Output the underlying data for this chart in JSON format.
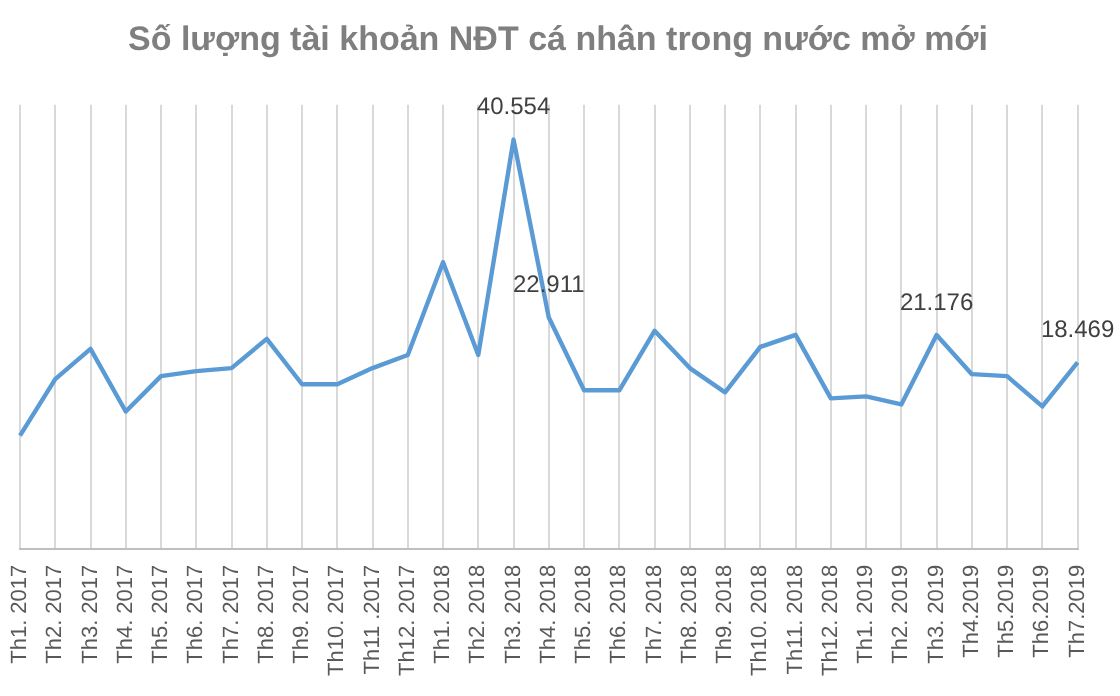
{
  "chart_data": {
    "type": "line",
    "title": "Số lượng tài khoản NĐT cá nhân trong nước mở mới",
    "categories": [
      "Th1. 2017",
      "Th2. 2017",
      "Th3. 2017",
      "Th4. 2017",
      "Th5. 2017",
      "Th6. 2017",
      "Th7. 2017",
      "Th8. 2017",
      "Th9. 2017",
      "Th10. 2017",
      "Th11 .2017",
      "Th12. 2017",
      "Th1. 2018",
      "Th2. 2018",
      "Th3. 2018",
      "Th4. 2018",
      "Th5. 2018",
      "Th6. 2018",
      "Th7. 2018",
      "Th8. 2018",
      "Th9. 2018",
      "Th10. 2018",
      "Th11. 2018",
      "Th12. 2018",
      "Th1. 2019",
      "Th2. 2019",
      "Th3. 2019",
      "Th4.2019",
      "Th5.2019",
      "Th6.2019",
      "Th7.2019"
    ],
    "series": [
      {
        "color": "#5b9bd5",
        "values": [
          11.2,
          16.8,
          19.8,
          13.6,
          17.1,
          17.6,
          17.9,
          20.8,
          16.3,
          16.3,
          17.9,
          19.2,
          28.4,
          19.2,
          40.554,
          22.911,
          15.7,
          15.7,
          21.6,
          17.9,
          15.5,
          20.0,
          21.2,
          14.9,
          15.1,
          14.3,
          21.176,
          17.3,
          17.1,
          14.1,
          18.469
        ],
        "value_labels": [
          null,
          null,
          null,
          null,
          null,
          null,
          null,
          null,
          null,
          null,
          null,
          null,
          null,
          null,
          "40.554",
          "22.911",
          null,
          null,
          null,
          null,
          null,
          null,
          null,
          null,
          null,
          null,
          "21.176",
          null,
          null,
          null,
          "18.469"
        ]
      }
    ],
    "ylim": [
      0,
      44
    ],
    "grid": "x",
    "legend": false,
    "tick_labels": "x",
    "marker": "none",
    "line_style": "solid"
  }
}
